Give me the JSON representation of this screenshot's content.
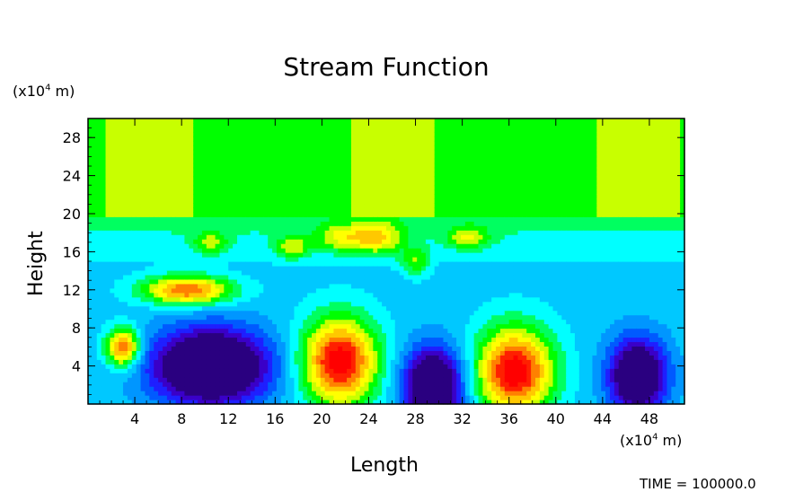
{
  "chart_data": {
    "type": "heatmap",
    "title": "Stream Function",
    "xlabel": "Length",
    "ylabel": "Height",
    "x_unit": "(x10",
    "x_unit_exp": "4",
    "x_unit_tail": " m)",
    "y_unit": "(x10",
    "y_unit_exp": "4",
    "y_unit_tail": " m)",
    "xlim": [
      0,
      51
    ],
    "ylim": [
      0,
      30
    ],
    "x_ticks": [
      "4",
      "8",
      "12",
      "16",
      "20",
      "24",
      "28",
      "32",
      "36",
      "40",
      "44",
      "48"
    ],
    "y_ticks": [
      "4",
      "8",
      "12",
      "16",
      "20",
      "24",
      "28"
    ],
    "grid": false,
    "filled_contour_levels": 13,
    "colormap": [
      "#2a0080",
      "#3a00c8",
      "#1f1fff",
      "#005aff",
      "#0096ff",
      "#00c8ff",
      "#00ffff",
      "#00ff60",
      "#00ff00",
      "#c8ff00",
      "#ffff00",
      "#ffc800",
      "#ff8000",
      "#ff2000",
      "#ff0000",
      "#ff5050",
      "#ff8080"
    ],
    "features": [
      {
        "kind": "positive-cell",
        "x": 21.5,
        "y": 4.5,
        "peak": 1.0
      },
      {
        "kind": "positive-cell",
        "x": 36.5,
        "y": 3.5,
        "peak": 1.0
      },
      {
        "kind": "positive-cell",
        "x": 3.0,
        "y": 6.0,
        "peak": 0.85
      },
      {
        "kind": "positive-band",
        "x": 8.5,
        "y": 12.0,
        "peak": 0.8
      },
      {
        "kind": "negative-cell",
        "x": 10.5,
        "y": 4.0,
        "peak": -1.0
      },
      {
        "kind": "negative-cell",
        "x": 29.5,
        "y": 2.0,
        "peak": -0.9
      },
      {
        "kind": "negative-cell",
        "x": 47.0,
        "y": 3.0,
        "peak": -0.85
      }
    ]
  },
  "footer": {
    "time_label": "TIME  =  100000.0"
  }
}
